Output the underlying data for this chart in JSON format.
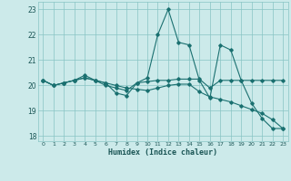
{
  "xlabel": "Humidex (Indice chaleur)",
  "background_color": "#cceaea",
  "grid_color": "#88c4c4",
  "line_color": "#1a7070",
  "xlim": [
    -0.5,
    23.5
  ],
  "ylim": [
    17.8,
    23.3
  ],
  "yticks": [
    18,
    19,
    20,
    21,
    22,
    23
  ],
  "xticks": [
    0,
    1,
    2,
    3,
    4,
    5,
    6,
    7,
    8,
    9,
    10,
    11,
    12,
    13,
    14,
    15,
    16,
    17,
    18,
    19,
    20,
    21,
    22,
    23
  ],
  "series": [
    [
      20.2,
      20.0,
      20.1,
      20.2,
      20.3,
      20.2,
      20.1,
      19.7,
      19.6,
      20.1,
      20.3,
      22.0,
      23.0,
      21.7,
      21.6,
      20.2,
      19.5,
      21.6,
      21.4,
      20.2,
      19.3,
      18.7,
      18.3,
      18.3
    ],
    [
      20.2,
      20.0,
      20.1,
      20.2,
      20.4,
      20.2,
      20.0,
      19.9,
      19.8,
      20.1,
      20.15,
      20.2,
      20.2,
      20.25,
      20.25,
      20.25,
      19.9,
      20.2,
      20.2,
      20.2,
      20.2,
      20.2,
      20.2,
      20.2
    ],
    [
      20.2,
      20.0,
      20.1,
      20.2,
      20.3,
      20.2,
      20.1,
      20.0,
      19.9,
      19.85,
      19.8,
      19.9,
      20.0,
      20.05,
      20.05,
      19.75,
      19.55,
      19.45,
      19.35,
      19.2,
      19.05,
      18.9,
      18.65,
      18.3
    ]
  ]
}
